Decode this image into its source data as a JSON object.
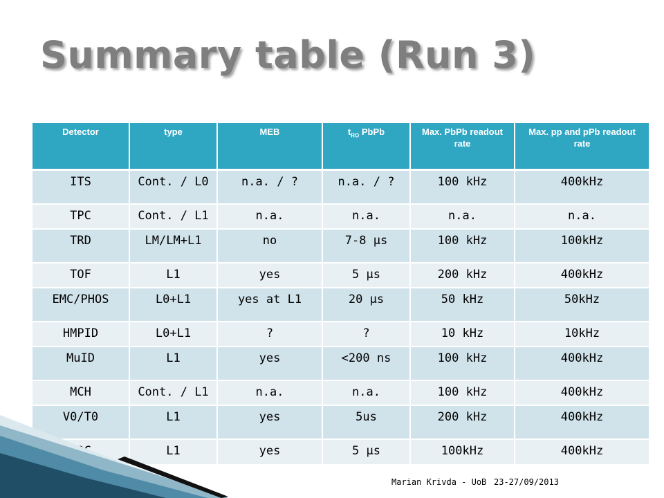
{
  "slide": {
    "title": "Summary table (Run 3)",
    "footer_author": "Marian Krivda - UoB",
    "footer_date": "23-27/09/2013"
  },
  "table": {
    "headers": [
      {
        "text": "Detector"
      },
      {
        "text": "type"
      },
      {
        "text": "MEB"
      },
      {
        "text": "t",
        "sub": "RO",
        "suffix": " PbPb"
      },
      {
        "text": "Max. PbPb readout rate"
      },
      {
        "text": "Max. pp and pPb readout rate"
      }
    ],
    "rows": [
      {
        "height": "odd",
        "cells": [
          "ITS",
          "Cont. / L0",
          "n.a. / ?",
          "n.a. / ?",
          "100 kHz",
          "400kHz"
        ]
      },
      {
        "height": "even",
        "cells": [
          "TPC",
          "Cont. / L1",
          "n.a.",
          "n.a.",
          "n.a.",
          "n.a."
        ]
      },
      {
        "height": "odd",
        "cells": [
          "TRD",
          "LM/LM+L1",
          "no",
          "7-8 µs",
          "100 kHz",
          "100kHz"
        ]
      },
      {
        "height": "even",
        "cells": [
          "TOF",
          "L1",
          "yes",
          "5 µs",
          "200 kHz",
          "400kHz"
        ]
      },
      {
        "height": "odd",
        "cells": [
          "EMC/PHOS",
          "L0+L1",
          "yes at L1",
          "20 µs",
          "50 kHz",
          "50kHz"
        ]
      },
      {
        "height": "even",
        "cells": [
          "HMPID",
          "L0+L1",
          "?",
          "?",
          "10 kHz",
          "10kHz"
        ]
      },
      {
        "height": "odd",
        "cells": [
          "MuID",
          "L1",
          "yes",
          "<200 ns",
          "100 kHz",
          "400kHz"
        ]
      },
      {
        "height": "even",
        "cells": [
          "MCH",
          "Cont. / L1",
          "n.a.",
          "n.a.",
          "100 kHz",
          "400kHz"
        ]
      },
      {
        "height": "odd",
        "cells": [
          "V0/T0",
          "L1",
          "yes",
          "5us",
          "200 kHz",
          "400kHz"
        ]
      },
      {
        "height": "even",
        "cells": [
          "ZDC",
          "L1",
          "yes",
          "5 µs",
          "100kHz",
          "400kHz"
        ]
      }
    ]
  },
  "colors": {
    "header_bg": "#2fa6c2",
    "row_odd_bg": "#d0e2ea",
    "row_even_bg": "#e9f0f4",
    "title_color": "#7f7f7f",
    "accent_dark": "#1f4e66"
  }
}
